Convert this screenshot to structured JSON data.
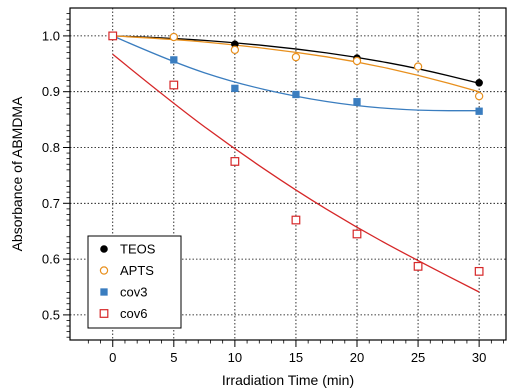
{
  "chart_data": {
    "type": "scatter",
    "xlabel": "Irradiation Time (min)",
    "ylabel": "Absorbance of ABMDMA",
    "xlim": [
      -3.5,
      32.2
    ],
    "ylim": [
      0.455,
      1.05
    ],
    "xticks": [
      0,
      5,
      10,
      15,
      20,
      25,
      30
    ],
    "xtick_labels": [
      "0",
      "5",
      "10",
      "15",
      "20",
      "25",
      "30"
    ],
    "yticks": [
      0.5,
      0.6,
      0.7,
      0.8,
      0.9,
      1.0
    ],
    "ytick_labels": [
      "0.5",
      "0.6",
      "0.7",
      "0.8",
      "0.9",
      "1.0"
    ],
    "grid": true,
    "legend_position": "bottom-left",
    "series": [
      {
        "name": "TEOS",
        "marker": "filled-circle",
        "color": "#000000",
        "x": [
          0,
          5,
          10,
          15,
          20,
          25,
          30
        ],
        "y": [
          1.0,
          0.998,
          0.985,
          null,
          0.96,
          null,
          0.916
        ],
        "fit": [
          [
            0,
            1.0
          ],
          [
            5,
            0.996
          ],
          [
            10,
            0.988
          ],
          [
            15,
            0.977
          ],
          [
            20,
            0.962
          ],
          [
            25,
            0.942
          ],
          [
            30,
            0.915
          ]
        ]
      },
      {
        "name": "APTS",
        "marker": "open-circle",
        "color": "#e8901e",
        "x": [
          0,
          5,
          10,
          15,
          20,
          25,
          30
        ],
        "y": [
          1.0,
          0.998,
          0.975,
          0.962,
          0.955,
          0.945,
          0.892
        ],
        "fit": [
          [
            0,
            1.0
          ],
          [
            5,
            0.994
          ],
          [
            10,
            0.984
          ],
          [
            15,
            0.971
          ],
          [
            20,
            0.954
          ],
          [
            25,
            0.93
          ],
          [
            30,
            0.9
          ]
        ]
      },
      {
        "name": "cov3",
        "marker": "filled-square",
        "color": "#3a7dbf",
        "x": [
          0,
          5,
          10,
          15,
          20,
          25,
          30
        ],
        "y": [
          1.0,
          0.957,
          0.906,
          0.895,
          0.882,
          null,
          0.865
        ],
        "fit": [
          [
            0,
            1.0
          ],
          [
            5,
            0.952
          ],
          [
            10,
            0.916
          ],
          [
            15,
            0.891
          ],
          [
            20,
            0.874
          ],
          [
            25,
            0.866
          ],
          [
            30,
            0.866
          ]
        ]
      },
      {
        "name": "cov6",
        "marker": "open-square",
        "color": "#d62728",
        "x": [
          0,
          5,
          10,
          15,
          20,
          25,
          30
        ],
        "y": [
          1.0,
          0.912,
          0.775,
          0.67,
          0.645,
          0.587,
          0.578
        ],
        "fit": [
          [
            0,
            0.967
          ],
          [
            5,
            0.878
          ],
          [
            10,
            0.797
          ],
          [
            15,
            0.723
          ],
          [
            20,
            0.656
          ],
          [
            25,
            0.597
          ],
          [
            30,
            0.541
          ]
        ]
      }
    ]
  }
}
